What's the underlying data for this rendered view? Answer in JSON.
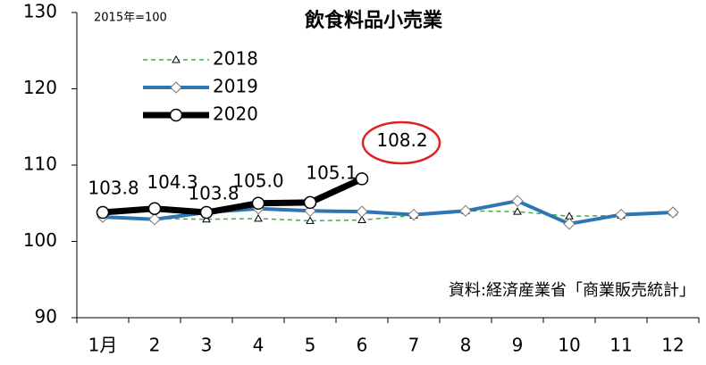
{
  "chart_data": {
    "type": "line",
    "title": "飲食料品小売業",
    "annotations": [
      "2015年=100",
      "資料:経済産業省「商業販売統計」"
    ],
    "categories": [
      "1月",
      "2",
      "3",
      "4",
      "5",
      "6",
      "7",
      "8",
      "9",
      "10",
      "11",
      "12"
    ],
    "series": [
      {
        "name": "2018",
        "color": "#3cb043",
        "values": [
          103.3,
          103.0,
          102.9,
          103.0,
          102.7,
          102.8,
          103.4,
          104.0,
          103.9,
          103.3,
          103.4,
          103.8
        ]
      },
      {
        "name": "2019",
        "color": "#2e75b6",
        "values": [
          103.2,
          102.9,
          103.8,
          104.3,
          104.0,
          103.9,
          103.5,
          104.0,
          105.3,
          102.3,
          103.5,
          103.8
        ]
      },
      {
        "name": "2020",
        "color": "#000000",
        "values": [
          103.8,
          104.3,
          103.8,
          105.0,
          105.1,
          108.2,
          null,
          null,
          null,
          null,
          null,
          null
        ],
        "value_labels": [
          "103.8",
          "104.3",
          "103.8",
          "105.0",
          "105.1",
          "108.2",
          null,
          null,
          null,
          null,
          null,
          null
        ]
      }
    ],
    "ylim": [
      90,
      130
    ],
    "yticks": [
      90,
      100,
      110,
      120,
      130
    ]
  }
}
